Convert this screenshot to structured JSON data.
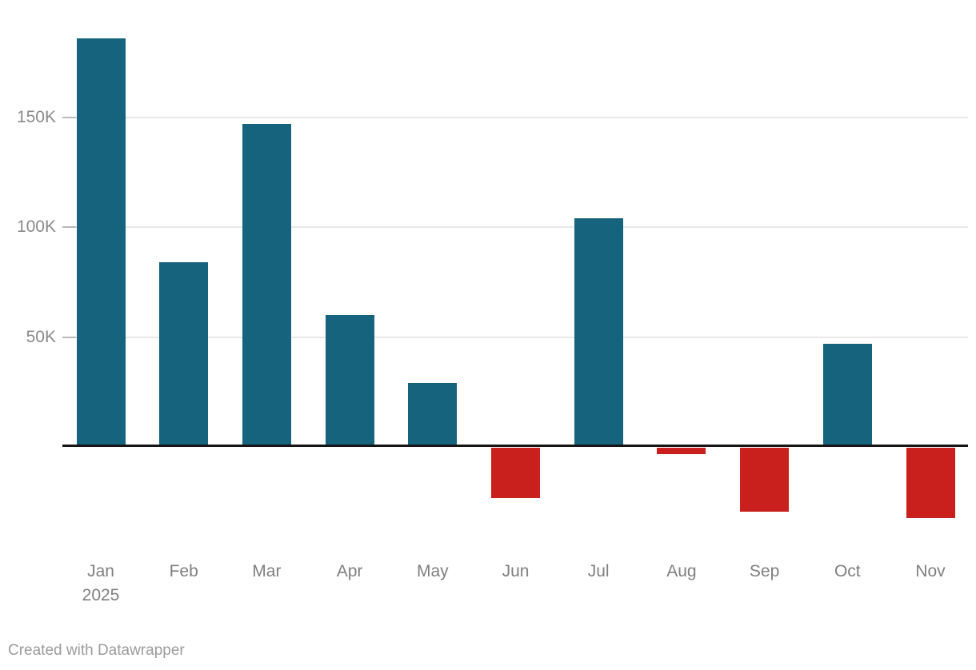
{
  "chart_data": {
    "type": "bar",
    "title": "",
    "xlabel": "",
    "ylabel": "",
    "categories": [
      "Jan 2025",
      "Feb",
      "Mar",
      "Apr",
      "May",
      "Jun",
      "Jul",
      "Aug",
      "Sep",
      "Oct",
      "Nov"
    ],
    "values": [
      186000,
      84000,
      147000,
      60000,
      29000,
      -23000,
      104000,
      -3000,
      -29000,
      47000,
      -32000
    ],
    "x_tick_labels": [
      {
        "line1": "Jan",
        "line2": "2025"
      },
      {
        "line1": "Feb"
      },
      {
        "line1": "Mar"
      },
      {
        "line1": "Apr"
      },
      {
        "line1": "May"
      },
      {
        "line1": "Jun"
      },
      {
        "line1": "Jul"
      },
      {
        "line1": "Aug"
      },
      {
        "line1": "Sep"
      },
      {
        "line1": "Oct"
      },
      {
        "line1": "Nov"
      }
    ],
    "yticks": [
      {
        "value": 50000,
        "label": "50K"
      },
      {
        "value": 100000,
        "label": "100K"
      },
      {
        "value": 150000,
        "label": "150K"
      }
    ],
    "ylim": [
      -40000,
      195000
    ],
    "grid": "horizontal-light",
    "legend": "none",
    "colors": {
      "positive": "#16637e",
      "negative": "#c9201d",
      "gridline": "#e8e8e8",
      "tick": "#b9b9b9",
      "axis_line": "#151515",
      "axis_text": "#7f7f7f",
      "y_axis_text": "#8a8a8a"
    }
  },
  "footer": {
    "credit": "Created with Datawrapper"
  }
}
